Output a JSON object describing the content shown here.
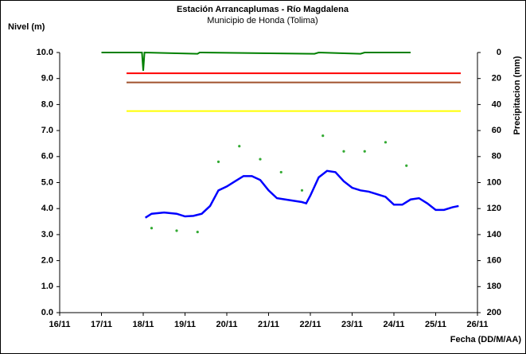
{
  "chart_data": {
    "type": "line",
    "title": "Estación Arrancaplumas - Río Magdalena",
    "subtitle": "Municipio de Honda (Tolima)",
    "ylabel": "Nivel (m)",
    "y2label": "Precipitacion (mm)",
    "xlabel": "Fecha (DD/M/AA)",
    "xlim": [
      16,
      26
    ],
    "xticks": [
      {
        "value": 16,
        "label": "16/11"
      },
      {
        "value": 17,
        "label": "17/11"
      },
      {
        "value": 18,
        "label": "18/11"
      },
      {
        "value": 19,
        "label": "19/11"
      },
      {
        "value": 20,
        "label": "20/11"
      },
      {
        "value": 21,
        "label": "21/11"
      },
      {
        "value": 22,
        "label": "22/11"
      },
      {
        "value": 23,
        "label": "23/11"
      },
      {
        "value": 24,
        "label": "24/11"
      },
      {
        "value": 25,
        "label": "25/11"
      },
      {
        "value": 26,
        "label": "26/11"
      }
    ],
    "ylim": [
      0,
      10
    ],
    "yticks": [
      {
        "value": 0,
        "label": "0.0"
      },
      {
        "value": 1,
        "label": "1.0"
      },
      {
        "value": 2,
        "label": "2.0"
      },
      {
        "value": 3,
        "label": "3.0"
      },
      {
        "value": 4,
        "label": "4.0"
      },
      {
        "value": 5,
        "label": "5.0"
      },
      {
        "value": 6,
        "label": "6.0"
      },
      {
        "value": 7,
        "label": "7.0"
      },
      {
        "value": 8,
        "label": "8.0"
      },
      {
        "value": 9,
        "label": "9.0"
      },
      {
        "value": 10,
        "label": "10.0"
      }
    ],
    "y2lim": [
      200,
      0
    ],
    "y2ticks": [
      0,
      20,
      40,
      60,
      80,
      100,
      120,
      140,
      160,
      180,
      200
    ],
    "series": [
      {
        "type": "line",
        "color": "#ff0000",
        "x": [
          17.6,
          25.6
        ],
        "values": [
          9.2,
          9.2
        ]
      },
      {
        "type": "line",
        "color": "#a0522d",
        "x": [
          17.6,
          25.6
        ],
        "values": [
          8.85,
          8.85
        ]
      },
      {
        "type": "line",
        "color": "#ffff00",
        "x": [
          17.6,
          25.6
        ],
        "values": [
          7.75,
          7.75
        ]
      },
      {
        "type": "line",
        "axis": "y2",
        "color": "#008000",
        "x": [
          17.0,
          17.97,
          18.0,
          18.03,
          19.3,
          19.35,
          22.1,
          22.2,
          23.2,
          23.3,
          24.4
        ],
        "values": [
          0,
          0,
          14,
          0,
          1,
          0,
          1,
          0,
          1,
          0,
          0
        ]
      },
      {
        "type": "scatter",
        "color": "#33aa33",
        "x": [
          18.2,
          18.8,
          19.3,
          19.8,
          20.3,
          20.8,
          21.3,
          21.8,
          22.3,
          22.8,
          23.3,
          23.8,
          24.3
        ],
        "values": [
          3.25,
          3.15,
          3.1,
          5.8,
          6.4,
          5.9,
          5.4,
          4.7,
          6.8,
          6.2,
          6.2,
          6.55,
          5.65
        ]
      },
      {
        "type": "line",
        "color": "#0000ff",
        "width": 2.5,
        "x": [
          18.05,
          18.2,
          18.5,
          18.8,
          19.0,
          19.2,
          19.4,
          19.6,
          19.8,
          20.0,
          20.2,
          20.4,
          20.6,
          20.8,
          21.0,
          21.2,
          21.4,
          21.6,
          21.8,
          21.9,
          22.0,
          22.2,
          22.4,
          22.6,
          22.8,
          23.0,
          23.2,
          23.4,
          23.6,
          23.8,
          24.0,
          24.2,
          24.4,
          24.6,
          24.8,
          25.0,
          25.2,
          25.4,
          25.55
        ],
        "values": [
          3.65,
          3.8,
          3.85,
          3.8,
          3.7,
          3.72,
          3.8,
          4.1,
          4.7,
          4.85,
          5.05,
          5.25,
          5.25,
          5.1,
          4.7,
          4.4,
          4.35,
          4.3,
          4.25,
          4.2,
          4.5,
          5.2,
          5.45,
          5.4,
          5.05,
          4.8,
          4.7,
          4.65,
          4.55,
          4.45,
          4.15,
          4.15,
          4.35,
          4.4,
          4.2,
          3.95,
          3.95,
          4.05,
          4.1
        ]
      }
    ]
  }
}
